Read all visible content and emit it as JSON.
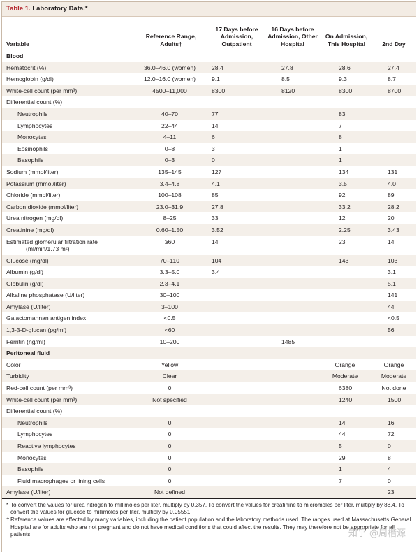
{
  "table": {
    "title_number": "Table 1.",
    "title_text": "Laboratory Data.*",
    "headers": {
      "variable": "Variable",
      "reference": "Reference Range, Adults†",
      "d17": "17 Days before Admission, Outpatient",
      "d16": "16 Days before Admission, Other Hospital",
      "admission": "On Admission, This Hospital",
      "day2": "2nd Day"
    },
    "rows": [
      {
        "label": "Blood",
        "type": "section",
        "ref": "",
        "d17": "",
        "d16": "",
        "adm": "",
        "day2": ""
      },
      {
        "label": "Hematocrit (%)",
        "ref": "36.0–46.0 (women)",
        "d17": "28.4",
        "d16": "27.8",
        "adm": "28.6",
        "day2": "27.4"
      },
      {
        "label": "Hemoglobin (g/dl)",
        "ref": "12.0–16.0 (women)",
        "d17": "9.1",
        "d16": "8.5",
        "adm": "9.3",
        "day2": "8.7"
      },
      {
        "label": "White-cell count (per mm³)",
        "ref": "4500–11,000",
        "d17": "8300",
        "d16": "8120",
        "adm": "8300",
        "day2": "8700"
      },
      {
        "label": "Differential count (%)",
        "ref": "",
        "d17": "",
        "d16": "",
        "adm": "",
        "day2": ""
      },
      {
        "label": "Neutrophils",
        "indent": true,
        "ref": "40–70",
        "d17": "77",
        "d16": "",
        "adm": "83",
        "day2": ""
      },
      {
        "label": "Lymphocytes",
        "indent": true,
        "ref": "22–44",
        "d17": "14",
        "d16": "",
        "adm": "7",
        "day2": ""
      },
      {
        "label": "Monocytes",
        "indent": true,
        "ref": "4–11",
        "d17": "6",
        "d16": "",
        "adm": "8",
        "day2": ""
      },
      {
        "label": "Eosinophils",
        "indent": true,
        "ref": "0–8",
        "d17": "3",
        "d16": "",
        "adm": "1",
        "day2": ""
      },
      {
        "label": "Basophils",
        "indent": true,
        "ref": "0–3",
        "d17": "0",
        "d16": "",
        "adm": "1",
        "day2": ""
      },
      {
        "label": "Sodium (mmol/liter)",
        "ref": "135–145",
        "d17": "127",
        "d16": "",
        "adm": "134",
        "day2": "131"
      },
      {
        "label": "Potassium (mmol/liter)",
        "ref": "3.4–4.8",
        "d17": "4.1",
        "d16": "",
        "adm": "3.5",
        "day2": "4.0"
      },
      {
        "label": "Chloride (mmol/liter)",
        "ref": "100–108",
        "d17": "85",
        "d16": "",
        "adm": "92",
        "day2": "89"
      },
      {
        "label": "Carbon dioxide (mmol/liter)",
        "ref": "23.0–31.9",
        "d17": "27.8",
        "d16": "",
        "adm": "33.2",
        "day2": "28.2"
      },
      {
        "label": "Urea nitrogen (mg/dl)",
        "ref": "8–25",
        "d17": "33",
        "d16": "",
        "adm": "12",
        "day2": "20"
      },
      {
        "label": "Creatinine (mg/dl)",
        "ref": "0.60–1.50",
        "d17": "3.52",
        "d16": "",
        "adm": "2.25",
        "day2": "3.43"
      },
      {
        "label": "Estimated glomerular filtration rate",
        "label2": "(ml/min/1.73 m²)",
        "type": "tall",
        "ref": "≥60",
        "d17": "14",
        "d16": "",
        "adm": "23",
        "day2": "14"
      },
      {
        "label": "Glucose (mg/dl)",
        "ref": "70–110",
        "d17": "104",
        "d16": "",
        "adm": "143",
        "day2": "103"
      },
      {
        "label": "Albumin (g/dl)",
        "ref": "3.3–5.0",
        "d17": "3.4",
        "d16": "",
        "adm": "",
        "day2": "3.1"
      },
      {
        "label": "Globulin (g/dl)",
        "ref": "2.3–4.1",
        "d17": "",
        "d16": "",
        "adm": "",
        "day2": "5.1"
      },
      {
        "label": "Alkaline phosphatase (U/liter)",
        "ref": "30–100",
        "d17": "",
        "d16": "",
        "adm": "",
        "day2": "141"
      },
      {
        "label": "Amylase (U/liter)",
        "ref": "3–100",
        "d17": "",
        "d16": "",
        "adm": "",
        "day2": "44"
      },
      {
        "label": "Galactomannan antigen index",
        "ref": "<0.5",
        "d17": "",
        "d16": "",
        "adm": "",
        "day2": "<0.5"
      },
      {
        "label": "1,3-β-D-glucan (pg/ml)",
        "ref": "<60",
        "d17": "",
        "d16": "",
        "adm": "",
        "day2": "56"
      },
      {
        "label": "Ferritin (ng/ml)",
        "ref": "10–200",
        "d17": "",
        "d16": "1485",
        "adm": "",
        "day2": ""
      },
      {
        "label": "Peritoneal fluid",
        "type": "section",
        "ref": "",
        "d17": "",
        "d16": "",
        "adm": "",
        "day2": ""
      },
      {
        "label": "Color",
        "ref": "Yellow",
        "d17": "",
        "d16": "",
        "adm": "Orange",
        "day2": "Orange"
      },
      {
        "label": "Turbidity",
        "ref": "Clear",
        "d17": "",
        "d16": "",
        "adm": "Moderate",
        "day2": "Moderate"
      },
      {
        "label": "Red-cell count (per mm³)",
        "ref": "0",
        "d17": "",
        "d16": "",
        "adm": "6380",
        "day2": "Not done"
      },
      {
        "label": "White-cell count (per mm³)",
        "ref": "Not specified",
        "d17": "",
        "d16": "",
        "adm": "1240",
        "day2": "1500"
      },
      {
        "label": "Differential count (%)",
        "ref": "",
        "d17": "",
        "d16": "",
        "adm": "",
        "day2": ""
      },
      {
        "label": "Neutrophils",
        "indent": true,
        "ref": "0",
        "d17": "",
        "d16": "",
        "adm": "14",
        "day2": "16"
      },
      {
        "label": "Lymphocytes",
        "indent": true,
        "ref": "0",
        "d17": "",
        "d16": "",
        "adm": "44",
        "day2": "72"
      },
      {
        "label": "Reactive lymphocytes",
        "indent": true,
        "ref": "0",
        "d17": "",
        "d16": "",
        "adm": "5",
        "day2": "0"
      },
      {
        "label": "Monocytes",
        "indent": true,
        "ref": "0",
        "d17": "",
        "d16": "",
        "adm": "29",
        "day2": "8"
      },
      {
        "label": "Basophils",
        "indent": true,
        "ref": "0",
        "d17": "",
        "d16": "",
        "adm": "1",
        "day2": "4"
      },
      {
        "label": "Fluid macrophages or lining cells",
        "indent": true,
        "ref": "0",
        "d17": "",
        "d16": "",
        "adm": "7",
        "day2": "0"
      },
      {
        "label": "Amylase (U/liter)",
        "ref": "Not defined",
        "d17": "",
        "d16": "",
        "adm": "",
        "day2": "23"
      }
    ],
    "footnotes": [
      {
        "symbol": "*",
        "text": "To convert the values for urea nitrogen to millimoles per liter, multiply by 0.357. To convert the values for creatinine to micromoles per liter, multiply by 88.4. To convert the values for glucose to millimoles per liter, multiply by 0.05551."
      },
      {
        "symbol": "†",
        "text": "Reference values are affected by many variables, including the patient population and the laboratory methods used. The ranges used at Massachusetts General Hospital are for adults who are not pregnant and do not have medical conditions that could affect the results. They may therefore not be appropriate for all patients."
      }
    ],
    "watermark": "知乎 @周楷源"
  },
  "colors": {
    "title_number": "#b3262e",
    "title_bg": "#f3ece4",
    "row_alt_bg": "#f4efe9",
    "border": "#c9b9a8"
  }
}
